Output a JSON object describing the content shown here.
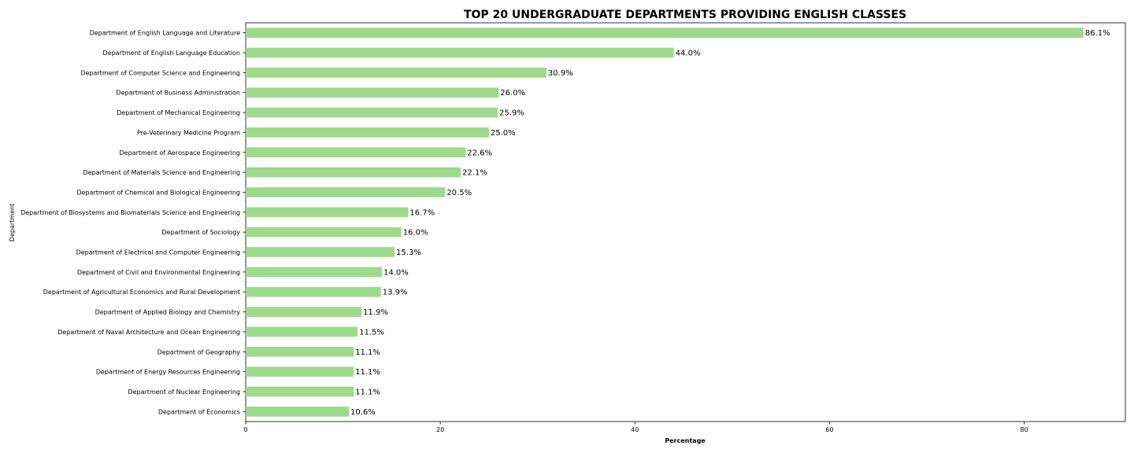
{
  "chart_data": {
    "type": "bar",
    "orientation": "horizontal",
    "title": "TOP 20 UNDERGRADUATE DEPARTMENTS PROVIDING ENGLISH CLASSES",
    "xlabel": "Percentage",
    "ylabel": "Department",
    "xlim": [
      0,
      90.4
    ],
    "xticks": [
      0,
      20,
      40,
      60,
      80
    ],
    "grid": false,
    "bar_color": "#9ed98e",
    "categories": [
      "Department of English Language and Literature",
      "Department of English Language Education",
      "Department of Computer Science and Engineering",
      "Department of Business Administration",
      "Department of Mechanical Engineering",
      "Pre-Veterinary Medicine Program",
      "Department of Aerospace Engineering",
      "Department of Materials Science and Engineering",
      "Department of Chemical and Biological Engineering",
      "Department of Biosystems and Biomaterials Science and Engineering",
      "Department of Sociology",
      "Department of Electrical and Computer Engineering",
      "Department of Civil and Environmental Engineering",
      "Department of Agricultural Economics and Rural Development",
      "Department of Applied Biology and Chemistry",
      "Department of Naval Architecture and Ocean Engineering",
      "Department of Geography",
      "Department of Energy Resources Engineering",
      "Department of Nuclear Engineering",
      "Department of Economics"
    ],
    "values": [
      86.1,
      44.0,
      30.9,
      26.0,
      25.9,
      25.0,
      22.6,
      22.1,
      20.5,
      16.7,
      16.0,
      15.3,
      14.0,
      13.9,
      11.9,
      11.5,
      11.1,
      11.1,
      11.1,
      10.6
    ],
    "value_labels": [
      "86.1%",
      "44.0%",
      "30.9%",
      "26.0%",
      "25.9%",
      "25.0%",
      "22.6%",
      "22.1%",
      "20.5%",
      "16.7%",
      "16.0%",
      "15.3%",
      "14.0%",
      "13.9%",
      "11.9%",
      "11.5%",
      "11.1%",
      "11.1%",
      "11.1%",
      "10.6%"
    ]
  }
}
